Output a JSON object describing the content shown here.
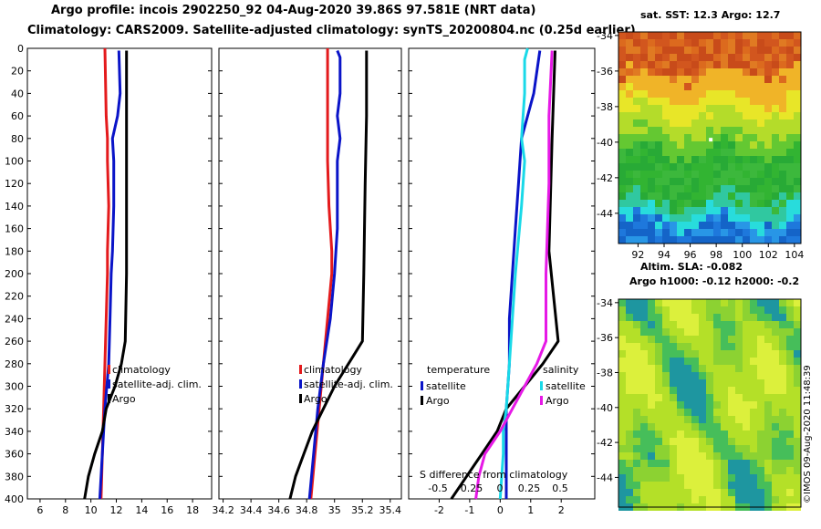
{
  "titles": {
    "line1": "Argo profile: incois 2902250_92 04-Aug-2020 39.86S 97.581E (NRT data)",
    "line2": "Climatology: CARS2009. Satellite-adjusted climatology: synTS_20200804.nc (0.25d earlier)"
  },
  "map1": {
    "title": "sat. SST: 12.3 Argo: 12.7"
  },
  "map2": {
    "title1": "Altim. SLA: -0.082",
    "title2": "Argo h1000: -0.12 h2000: -0.2"
  },
  "credit": "©IMOS 09-Aug-2020 11:48:39",
  "colors": {
    "climatology": "#e41a1c",
    "satellite": "#0a14c8",
    "argo": "#000000",
    "sal_sat": "#19d9e8",
    "sal_argo": "#e619e6"
  },
  "chart_data": [
    {
      "type": "line",
      "name": "temperature-profile",
      "xlim": [
        5,
        19.5
      ],
      "ylim": [
        400,
        0
      ],
      "xticks": [
        6,
        8,
        10,
        12,
        14,
        16,
        18
      ],
      "xtick_labels": [
        "6",
        "8",
        "10",
        "12",
        "14",
        "16",
        "18"
      ],
      "yticks": [
        0,
        20,
        40,
        60,
        80,
        100,
        120,
        140,
        160,
        180,
        200,
        220,
        240,
        260,
        280,
        300,
        320,
        340,
        360,
        380,
        400
      ],
      "ytick_labels": [
        "0",
        "20",
        "40",
        "60",
        "80",
        "100",
        "120",
        "140",
        "160",
        "180",
        "200",
        "220",
        "240",
        "260",
        "280",
        "300",
        "320",
        "340",
        "360",
        "380",
        "400"
      ],
      "legend": [
        "climatology",
        "satellite-adj. clim.",
        "Argo"
      ],
      "series": [
        {
          "name": "climatology",
          "color_key": "climatology",
          "depth": [
            0,
            60,
            80,
            100,
            140,
            180,
            200,
            240,
            280,
            320,
            360,
            400
          ],
          "values": [
            11.1,
            11.2,
            11.3,
            11.3,
            11.4,
            11.3,
            11.3,
            11.2,
            11.1,
            11.0,
            10.9,
            10.8
          ]
        },
        {
          "name": "satellite-adj. clim.",
          "color_key": "satellite",
          "depth": [
            2,
            40,
            60,
            80,
            100,
            140,
            180,
            200,
            240,
            280,
            320,
            360,
            400
          ],
          "values": [
            12.2,
            12.3,
            12.1,
            11.7,
            11.8,
            11.8,
            11.7,
            11.6,
            11.5,
            11.4,
            11.1,
            10.9,
            10.7
          ]
        },
        {
          "name": "Argo",
          "color_key": "argo",
          "depth": [
            2,
            20,
            60,
            100,
            200,
            260,
            280,
            300,
            320,
            340,
            360,
            380,
            400
          ],
          "values": [
            12.8,
            12.8,
            12.8,
            12.8,
            12.8,
            12.7,
            12.4,
            11.9,
            11.2,
            10.9,
            10.3,
            9.8,
            9.5
          ]
        }
      ]
    },
    {
      "type": "line",
      "name": "salinity-profile",
      "xlim": [
        34.17,
        35.48
      ],
      "ylim": [
        400,
        0
      ],
      "xticks": [
        34.2,
        34.4,
        34.6,
        34.8,
        35.0,
        35.2,
        35.4
      ],
      "xtick_labels": [
        "34.2",
        "34.4",
        "34.6",
        "34.8",
        "35",
        "35.2",
        "35.4"
      ],
      "legend": [
        "climatology",
        "satellite-adj. clim.",
        "Argo"
      ],
      "series": [
        {
          "name": "climatology",
          "color_key": "climatology",
          "depth": [
            0,
            100,
            140,
            180,
            200,
            240,
            280,
            320,
            360,
            400
          ],
          "values": [
            34.95,
            34.95,
            34.96,
            34.98,
            34.98,
            34.95,
            34.92,
            34.89,
            34.86,
            34.83
          ]
        },
        {
          "name": "satellite-adj. clim.",
          "color_key": "satellite",
          "depth": [
            2,
            8,
            40,
            60,
            80,
            100,
            120,
            160,
            200,
            240,
            280,
            320,
            360,
            400
          ],
          "values": [
            35.02,
            35.04,
            35.04,
            35.02,
            35.04,
            35.02,
            35.02,
            35.02,
            35.0,
            34.97,
            34.92,
            34.88,
            34.85,
            34.82
          ]
        },
        {
          "name": "Argo",
          "color_key": "argo",
          "depth": [
            2,
            60,
            120,
            200,
            260,
            280,
            300,
            320,
            340,
            360,
            380,
            400
          ],
          "values": [
            35.23,
            35.23,
            35.22,
            35.21,
            35.2,
            35.1,
            35.0,
            34.92,
            34.84,
            34.78,
            34.72,
            34.68
          ]
        }
      ]
    },
    {
      "type": "line",
      "name": "difference-profile",
      "xlim": [
        -3,
        3.1
      ],
      "ylim": [
        400,
        0
      ],
      "xticks": [
        -2,
        -1,
        0,
        1,
        2
      ],
      "xtick_labels": [
        "-2",
        "-1",
        "0",
        "1",
        "2"
      ],
      "s_axis_title": "S difference from climatology",
      "s_ticks": [
        "-0.5",
        "-0.25",
        "0",
        "0.25",
        "0.5"
      ],
      "legend_temperature": {
        "title": "temperature",
        "items": [
          "satellite",
          "Argo"
        ]
      },
      "legend_salinity": {
        "title": "salinity",
        "items": [
          "satellite",
          "Argo"
        ]
      },
      "series": [
        {
          "name": "T satellite",
          "color_key": "satellite",
          "depth": [
            2,
            40,
            80,
            120,
            160,
            200,
            240,
            280,
            320,
            360,
            400
          ],
          "values": [
            1.3,
            1.1,
            0.7,
            0.6,
            0.5,
            0.4,
            0.3,
            0.3,
            0.2,
            0.2,
            0.2
          ]
        },
        {
          "name": "T Argo",
          "color_key": "argo",
          "depth": [
            2,
            80,
            180,
            260,
            280,
            300,
            320,
            340,
            360,
            380,
            400
          ],
          "values": [
            1.8,
            1.7,
            1.6,
            1.9,
            1.4,
            0.8,
            0.2,
            -0.1,
            -0.6,
            -1.1,
            -1.6
          ]
        },
        {
          "name": "S satellite",
          "color_key": "sal_sat",
          "depth": [
            0,
            10,
            40,
            80,
            100,
            140,
            200,
            240,
            280,
            320,
            340,
            360,
            400
          ],
          "values": [
            0.9,
            0.8,
            0.8,
            0.7,
            0.8,
            0.7,
            0.5,
            0.4,
            0.3,
            0.2,
            0.1,
            0.1,
            0.0
          ]
        },
        {
          "name": "S Argo",
          "color_key": "sal_argo",
          "depth": [
            2,
            60,
            120,
            200,
            260,
            280,
            300,
            320,
            340,
            360,
            380,
            400
          ],
          "values": [
            1.7,
            1.6,
            1.6,
            1.5,
            1.5,
            1.2,
            0.8,
            0.4,
            0.0,
            -0.5,
            -0.7,
            -0.8
          ]
        }
      ]
    },
    {
      "type": "heatmap",
      "name": "sst-map",
      "xlim": [
        90.5,
        104.5
      ],
      "ylim": [
        -45.7,
        -33.8
      ],
      "xticks": [
        92,
        94,
        96,
        98,
        100,
        102,
        104
      ],
      "xtick_labels": [
        "92",
        "94",
        "96",
        "98",
        "100",
        "102",
        "104"
      ],
      "yticks": [
        -34,
        -36,
        -38,
        -40,
        -42,
        -44
      ],
      "ytick_labels": [
        "-34",
        "-36",
        "-38",
        "-40",
        "-42",
        "-44"
      ],
      "argo_position": [
        97.58,
        -39.86
      ]
    },
    {
      "type": "heatmap",
      "name": "sla-map",
      "xlim": [
        90.5,
        104.5
      ],
      "ylim": [
        -45.7,
        -33.8
      ],
      "yticks": [
        -34,
        -36,
        -38,
        -40,
        -42,
        -44
      ],
      "ytick_labels": [
        "-34",
        "-36",
        "-38",
        "-40",
        "-42",
        "-44"
      ]
    }
  ]
}
